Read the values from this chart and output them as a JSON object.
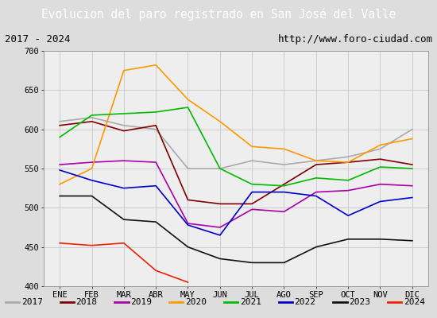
{
  "title": "Evolucion del paro registrado en San José del Valle",
  "title_bg": "#4d8fd1",
  "subtitle_left": "2017 - 2024",
  "subtitle_right": "http://www.foro-ciudad.com",
  "xlabel_months": [
    "ENE",
    "FEB",
    "MAR",
    "ABR",
    "MAY",
    "JUN",
    "JUL",
    "AGO",
    "SEP",
    "OCT",
    "NOV",
    "DIC"
  ],
  "ylim": [
    400,
    700
  ],
  "yticks": [
    400,
    450,
    500,
    550,
    600,
    650,
    700
  ],
  "series": {
    "2017": {
      "color": "#aaaaaa",
      "data": [
        610,
        615,
        605,
        600,
        550,
        550,
        560,
        555,
        560,
        565,
        575,
        600
      ]
    },
    "2018": {
      "color": "#800000",
      "data": [
        605,
        610,
        598,
        605,
        510,
        505,
        505,
        530,
        555,
        558,
        562,
        555
      ]
    },
    "2019": {
      "color": "#aa00aa",
      "data": [
        555,
        558,
        560,
        558,
        480,
        475,
        498,
        495,
        520,
        522,
        530,
        528
      ]
    },
    "2020": {
      "color": "#ff9900",
      "data": [
        530,
        550,
        675,
        682,
        638,
        610,
        578,
        575,
        560,
        558,
        580,
        588
      ]
    },
    "2021": {
      "color": "#00bb00",
      "data": [
        590,
        618,
        620,
        622,
        628,
        550,
        530,
        528,
        538,
        535,
        552,
        550
      ]
    },
    "2022": {
      "color": "#0000cc",
      "data": [
        548,
        535,
        525,
        528,
        478,
        465,
        520,
        520,
        515,
        490,
        508,
        513
      ]
    },
    "2023": {
      "color": "#111111",
      "data": [
        515,
        515,
        485,
        482,
        450,
        435,
        430,
        430,
        450,
        460,
        460,
        458
      ]
    },
    "2024": {
      "color": "#ee2200",
      "data": [
        455,
        452,
        455,
        420,
        405,
        null,
        null,
        null,
        null,
        null,
        null,
        null
      ]
    }
  },
  "legend_order": [
    "2017",
    "2018",
    "2019",
    "2020",
    "2021",
    "2022",
    "2023",
    "2024"
  ],
  "grid_color": "#cccccc",
  "plot_bg": "#eeeeee",
  "outer_bg": "#ffffff",
  "fig_bg": "#dddddd"
}
